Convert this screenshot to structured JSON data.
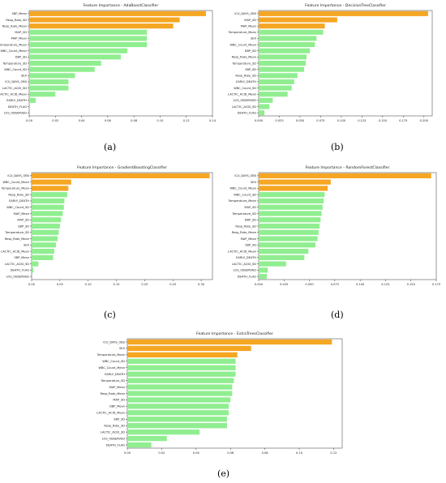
{
  "colors": {
    "top3": "#f5a623",
    "rest": "#90ee90"
  },
  "chart_data": [
    {
      "type": "bar",
      "orientation": "horizontal",
      "panel_label": "(a)",
      "title": "Feature Importance - AdaBoostClassifier",
      "ticks": [
        "0.00",
        "0.02",
        "0.04",
        "0.06",
        "0.08",
        "0.10",
        "0.12",
        "0.14"
      ],
      "xlim": [
        0,
        0.14
      ],
      "categories": [
        "SBP_Mean",
        "Resp_Rate_SD",
        "Resp_Rate_Mean",
        "MAP_SD",
        "MAP_Mean",
        "Temperature_Mean",
        "WBC_Count_Mean",
        "DBP_SD",
        "Temperature_SD",
        "WBC_Count_SD",
        "SEX",
        "ICU_DAYS_OBS",
        "LACTIC_ACID_SD",
        "LACTIC_ACID_Mean",
        "EARLY_DEATH",
        "DEATH_FLAG",
        "LOS_OBSERVED"
      ],
      "values": [
        0.135,
        0.115,
        0.11,
        0.09,
        0.09,
        0.09,
        0.075,
        0.07,
        0.055,
        0.05,
        0.035,
        0.03,
        0.03,
        0.02,
        0.005,
        0.0,
        0.0
      ]
    },
    {
      "type": "bar",
      "orientation": "horizontal",
      "panel_label": "(b)",
      "title": "Feature Importance - DecisionTreeClassifier",
      "ticks": [
        "0.000",
        "0.025",
        "0.050",
        "0.075",
        "0.100",
        "0.125",
        "0.150",
        "0.175",
        "0.200"
      ],
      "xlim": [
        0,
        0.21
      ],
      "categories": [
        "ICU_DAYS_OBS",
        "MAP_SD",
        "MAP_Mean",
        "Temperature_Mean",
        "SEX",
        "WBC_Count_Mean",
        "DBP_SD",
        "Resp_Rate_Mean",
        "Temperature_SD",
        "SBP_SD",
        "Resp_Rate_SD",
        "EARLY_DEATH",
        "WBC_Count_SD",
        "LACTIC_ACID_Mean",
        "LOS_OBSERVED",
        "LACTIC_ACID_SD",
        "DEATH_FLAG"
      ],
      "values": [
        0.205,
        0.095,
        0.08,
        0.078,
        0.07,
        0.068,
        0.062,
        0.058,
        0.057,
        0.055,
        0.047,
        0.043,
        0.04,
        0.035,
        0.017,
        0.013,
        0.007
      ]
    },
    {
      "type": "bar",
      "orientation": "horizontal",
      "panel_label": "(c)",
      "title": "Feature Importance - GradientBoostingClassifier",
      "ticks": [
        "0.00",
        "0.05",
        "0.10",
        "0.15",
        "0.20",
        "0.25",
        "0.30"
      ],
      "xlim": [
        0,
        0.32
      ],
      "categories": [
        "ICU_DAYS_OBS",
        "WBC_Count_Mean",
        "Temperature_Mean",
        "Resp_Rate_SD",
        "EARLY_DEATH",
        "WBC_Count_SD",
        "MAP_Mean",
        "MAP_SD",
        "SBP_SD",
        "Temperature_SD",
        "Resp_Rate_Mean",
        "SEX",
        "LACTIC_ACID_Mean",
        "SBP_Mean",
        "LACTIC_ACID_SD",
        "DEATH_FLAG",
        "LOS_OBSERVED"
      ],
      "values": [
        0.315,
        0.07,
        0.065,
        0.063,
        0.058,
        0.057,
        0.055,
        0.052,
        0.05,
        0.048,
        0.046,
        0.043,
        0.04,
        0.038,
        0.012,
        0.003,
        0.0
      ]
    },
    {
      "type": "bar",
      "orientation": "horizontal",
      "panel_label": "(d)",
      "title": "Feature Importance - RandomForestClassifier",
      "ticks": [
        "0.000",
        "0.025",
        "0.050",
        "0.075",
        "0.100",
        "0.125",
        "0.150",
        "0.175"
      ],
      "xlim": [
        0,
        0.175
      ],
      "categories": [
        "ICU_DAYS_OBS",
        "SEX",
        "WBC_Count_Mean",
        "WBC_Count_SD",
        "Temperature_Mean",
        "MAP_SD",
        "Temperature_SD",
        "DBP_SD",
        "Resp_Rate_SD",
        "Resp_Rate_Mean",
        "MAP_Mean",
        "SBP_SD",
        "LACTIC_ACID_Mean",
        "EARLY_DEATH",
        "LACTIC_ACID_SD",
        "LOS_OBSERVED",
        "DEATH_FLAG"
      ],
      "values": [
        0.17,
        0.071,
        0.068,
        0.065,
        0.064,
        0.063,
        0.062,
        0.061,
        0.06,
        0.059,
        0.058,
        0.056,
        0.049,
        0.045,
        0.027,
        0.009,
        0.008
      ]
    },
    {
      "type": "bar",
      "orientation": "horizontal",
      "panel_label": "(e)",
      "title": "Feature Importance - ExtraTreesClassifier",
      "ticks": [
        "0.00",
        "0.02",
        "0.04",
        "0.06",
        "0.08",
        "0.10",
        "0.12"
      ],
      "xlim": [
        0,
        0.125
      ],
      "categories": [
        "ICU_DAYS_OBS",
        "SEX",
        "Temperature_Mean",
        "WBC_Count_SD",
        "WBC_Count_Mean",
        "EARLY_DEATH",
        "Temperature_SD",
        "MAP_Mean",
        "Resp_Rate_Mean",
        "MAP_SD",
        "DBP_Mean",
        "LACTIC_ACID_Mean",
        "SBP_SD",
        "Resp_Rate_SD",
        "LACTIC_ACID_SD",
        "LOS_OBSERVED",
        "DEATH_FLAG"
      ],
      "values": [
        0.119,
        0.072,
        0.064,
        0.063,
        0.063,
        0.063,
        0.062,
        0.061,
        0.061,
        0.06,
        0.059,
        0.059,
        0.058,
        0.058,
        0.042,
        0.023,
        0.014
      ]
    }
  ]
}
